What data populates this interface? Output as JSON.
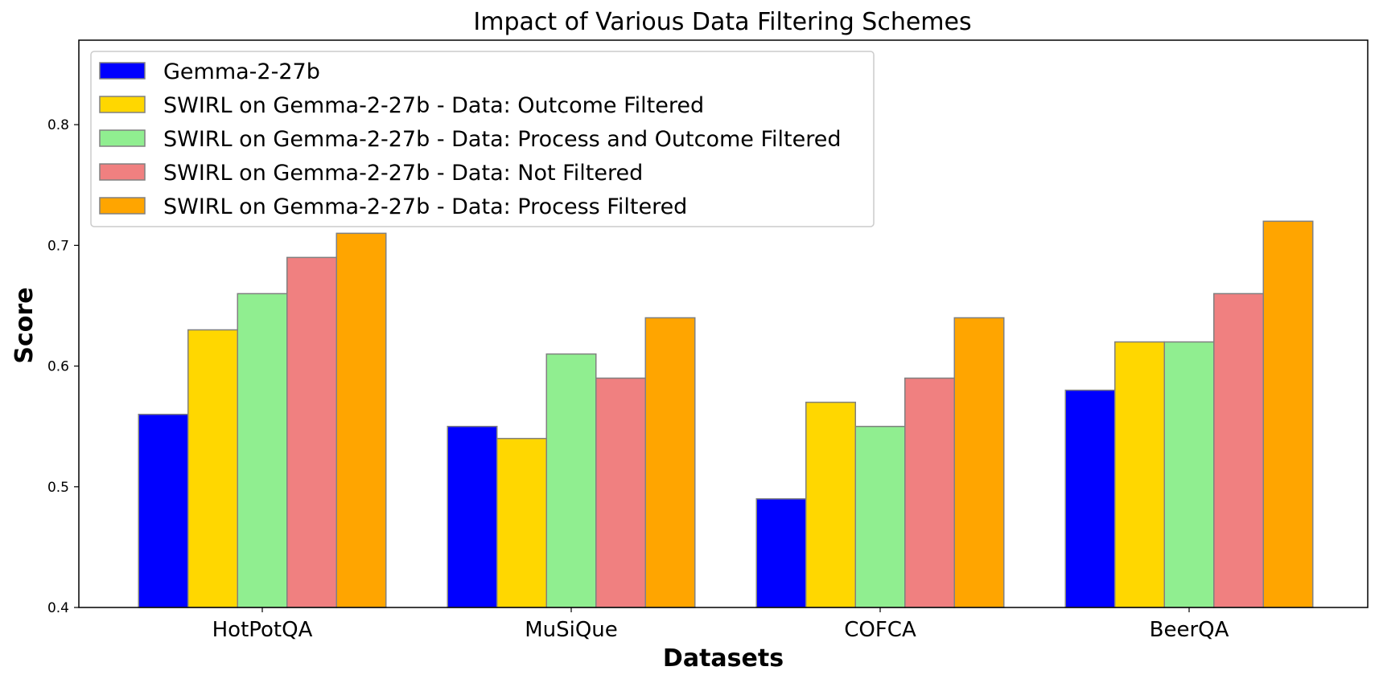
{
  "chart_data": {
    "type": "bar",
    "title": "Impact of Various Data Filtering Schemes",
    "xlabel": "Datasets",
    "ylabel": "Score",
    "categories": [
      "HotPotQA",
      "MuSiQue",
      "COFCA",
      "BeerQA"
    ],
    "ylim": [
      0.4,
      0.87
    ],
    "yticks": [
      0.4,
      0.5,
      0.6,
      0.7,
      0.8
    ],
    "ytick_labels": [
      "0.4",
      "0.5",
      "0.6",
      "0.7",
      "0.8"
    ],
    "grid": false,
    "legend_position": "top-left",
    "bar_edge_color": "#808080",
    "series": [
      {
        "name": "Gemma-2-27b",
        "color": "#0000ff",
        "values": [
          0.56,
          0.55,
          0.49,
          0.58
        ]
      },
      {
        "name": "SWIRL on Gemma-2-27b - Data: Outcome Filtered",
        "color": "#ffd700",
        "values": [
          0.63,
          0.54,
          0.57,
          0.62
        ]
      },
      {
        "name": "SWIRL on Gemma-2-27b - Data: Process and Outcome Filtered",
        "color": "#90ee90",
        "values": [
          0.66,
          0.61,
          0.55,
          0.62
        ]
      },
      {
        "name": "SWIRL on Gemma-2-27b - Data: Not Filtered",
        "color": "#f08080",
        "values": [
          0.69,
          0.59,
          0.59,
          0.66
        ]
      },
      {
        "name": "SWIRL on Gemma-2-27b - Data: Process Filtered",
        "color": "#ffa500",
        "values": [
          0.71,
          0.64,
          0.64,
          0.72
        ]
      }
    ]
  }
}
